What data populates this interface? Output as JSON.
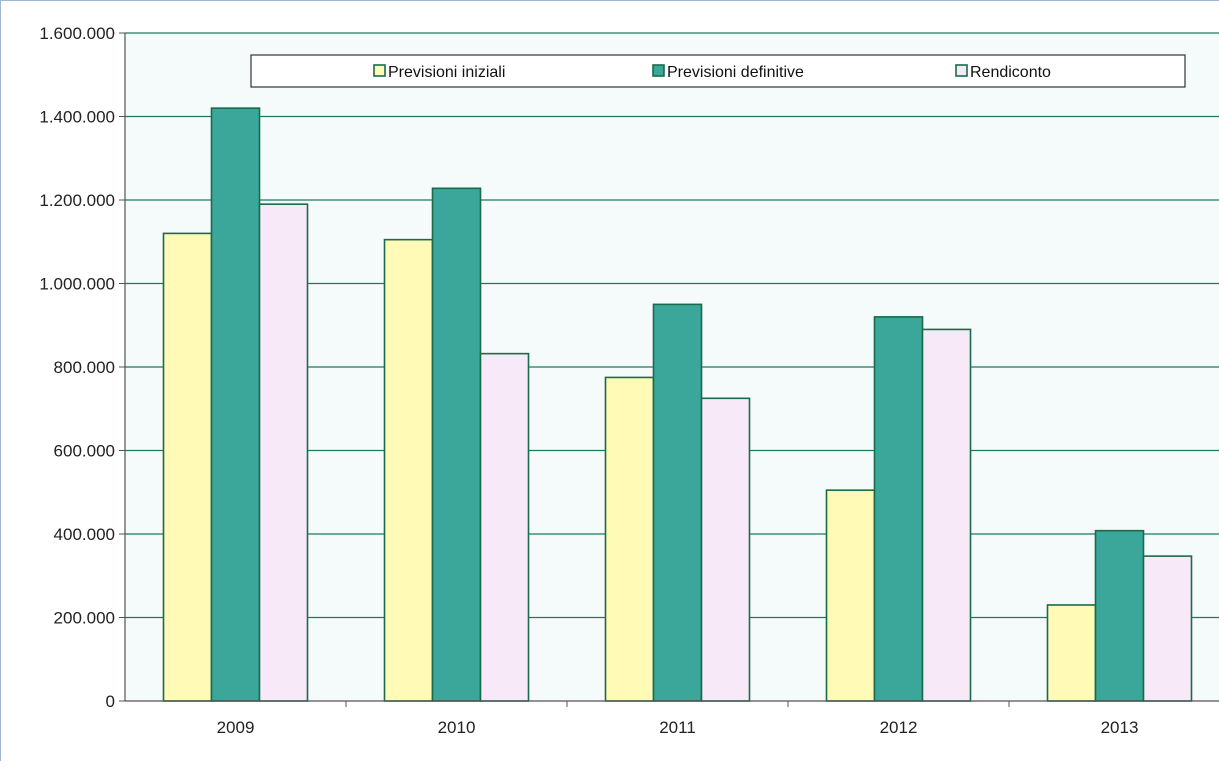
{
  "chart_data": {
    "type": "bar",
    "title": "",
    "xlabel": "",
    "ylabel": "",
    "categories": [
      "2009",
      "2010",
      "2011",
      "2012",
      "2013"
    ],
    "series": [
      {
        "name": "Previsioni iniziali",
        "color": "#fffbb7",
        "values": [
          1120000,
          1105000,
          775000,
          505000,
          230000
        ]
      },
      {
        "name": "Previsioni definitive",
        "color": "#3aa79a",
        "values": [
          1420000,
          1228000,
          950000,
          920000,
          408000
        ]
      },
      {
        "name": "Rendiconto",
        "color": "#f7e9f7",
        "values": [
          1190000,
          832000,
          725000,
          890000,
          347000
        ]
      }
    ],
    "ylim": [
      0,
      1600000
    ],
    "yticks": [
      0,
      200000,
      400000,
      600000,
      800000,
      1000000,
      1200000,
      1400000,
      1600000
    ],
    "ytick_labels": [
      "0",
      "200.000",
      "400.000",
      "600.000",
      "800.000",
      "1.000.000",
      "1.200.000",
      "1.400.000",
      "1.600.000"
    ],
    "grid": true,
    "legend_position": "top",
    "colors": {
      "plot_background": "#f5fafa",
      "gridline": "#1f7a5a",
      "bar_outline": "#1a6b4a",
      "axis": "#555555"
    }
  }
}
